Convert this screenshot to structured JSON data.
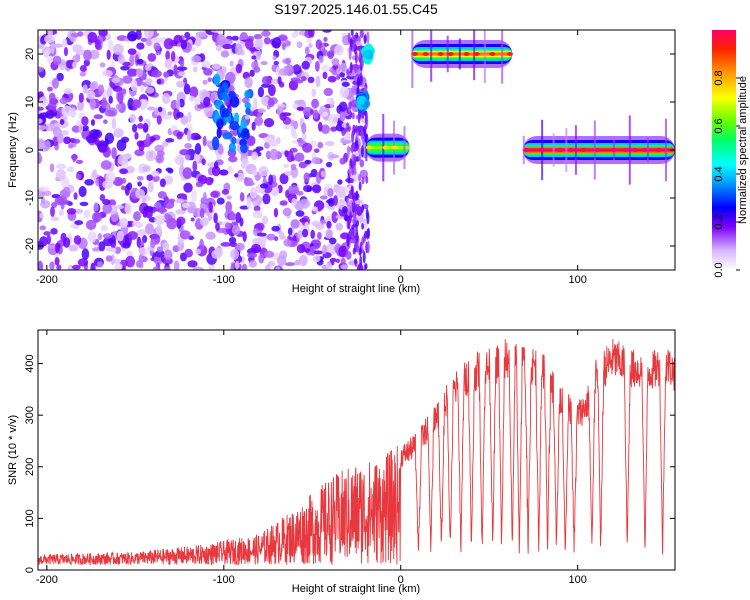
{
  "title": "S197.2025.146.01.55.C45",
  "chart_data": [
    {
      "type": "heatmap",
      "xlabel": "Height of straight line (km)",
      "ylabel": "Frequency (Hz)",
      "xlim": [
        -205,
        155
      ],
      "ylim": [
        -25,
        25
      ],
      "xticks": [
        -200,
        -100,
        0,
        100
      ],
      "xtick_labels": [
        "-200",
        "-100",
        "0",
        "100"
      ],
      "yticks": [
        -20,
        -10,
        0,
        10,
        20
      ],
      "ytick_labels": [
        "-20",
        "-10",
        "0",
        "10",
        "20"
      ],
      "colorbar": {
        "label": "Normalized spectral amplitude",
        "range": [
          0,
          1
        ],
        "ticks": [
          0.0,
          0.2,
          0.4,
          0.6,
          0.8
        ],
        "tick_labels": [
          "0.0",
          "0.2",
          "0.4",
          "0.6",
          "0.8"
        ],
        "colormap": "rainbow"
      },
      "features": [
        {
          "x": [
            -205,
            -20
          ],
          "y": [
            -25,
            25
          ],
          "kind": "scatter_noise",
          "amplitude": 0.2
        },
        {
          "x": [
            -105,
            -85
          ],
          "y": [
            0,
            15
          ],
          "kind": "blob",
          "amplitude": 0.35
        },
        {
          "x": [
            -20,
            5
          ],
          "y": [
            0,
            1
          ],
          "kind": "line",
          "amplitude": 0.65
        },
        {
          "x": [
            -20,
            -17
          ],
          "y": [
            19,
            21
          ],
          "kind": "blob",
          "amplitude": 0.5
        },
        {
          "x": [
            -23,
            -20
          ],
          "y": [
            9,
            11
          ],
          "kind": "blob",
          "amplitude": 0.4
        },
        {
          "x": [
            6,
            63
          ],
          "y": [
            19,
            21
          ],
          "kind": "line",
          "amplitude": 0.85
        },
        {
          "x": [
            69,
            155
          ],
          "y": [
            -0.5,
            0.5
          ],
          "kind": "line",
          "amplitude": 1.0
        }
      ]
    },
    {
      "type": "line",
      "xlabel": "Height of straight line (km)",
      "ylabel": "SNR (10 * v/v)",
      "xlim": [
        -205,
        155
      ],
      "ylim": [
        0,
        465
      ],
      "xticks": [
        -200,
        -100,
        0,
        100
      ],
      "xtick_labels": [
        "-200",
        "-100",
        "0",
        "100"
      ],
      "yticks": [
        0,
        100,
        200,
        300,
        400
      ],
      "ytick_labels": [
        "0",
        "100",
        "200",
        "300",
        "400"
      ],
      "color": "#e8383d",
      "envelope": {
        "x": [
          -205,
          -150,
          -110,
          -80,
          -60,
          -40,
          -25,
          -10,
          0,
          10,
          20,
          30,
          40,
          50,
          60,
          70,
          80,
          90,
          100,
          105,
          110,
          120,
          130,
          140,
          150,
          155
        ],
        "y": [
          20,
          25,
          40,
          60,
          110,
          170,
          200,
          210,
          240,
          270,
          330,
          380,
          420,
          430,
          450,
          440,
          430,
          360,
          330,
          350,
          410,
          450,
          430,
          420,
          440,
          420
        ]
      },
      "dips": [
        10,
        17,
        23,
        28,
        34,
        40,
        46,
        52,
        57,
        63,
        67,
        72,
        78,
        83,
        88,
        93,
        98,
        108,
        113,
        128,
        138,
        148
      ]
    }
  ]
}
